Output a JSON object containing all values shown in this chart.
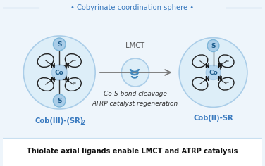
{
  "bg_color": "#eef5fb",
  "bottom_bar_color": "#ffffff",
  "bottom_text": "Thiolate axial ligands enable LMCT and ATRP catalysis",
  "top_text": "• Cobyrinate coordination sphere •",
  "top_text_color": "#3a7abf",
  "lmct_text": "— LMCT —",
  "lmct_color": "#555555",
  "bond_cleavage_text": "Co-S bond cleavage",
  "atrp_text": "ATRP catalyst regeneration",
  "label_color": "#3a7abf",
  "outer_circle_color": "#aacde8",
  "outer_circle_fill": "#ddeef8",
  "cobalt_fill": "#b8d8f0",
  "cobalt_edge": "#aacde8",
  "sulfur_fill": "#aacde8",
  "sulfur_edge": "#7bb5d8",
  "corrin_fill": "#cce0f0",
  "corrin_stroke": "#222222",
  "pyrrole_fill": "#ddeef8",
  "arrow_color": "#777777",
  "light_icon_color": "#4488bb",
  "light_circle_fill": "#ddeef8",
  "light_circle_edge": "#aacde8",
  "n_color": "#111111",
  "bond_line_color": "#333333"
}
